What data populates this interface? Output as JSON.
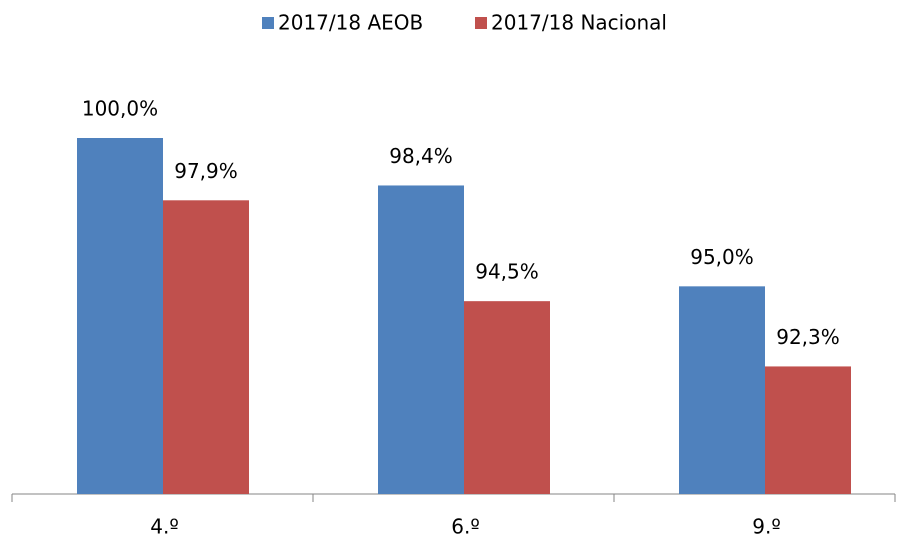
{
  "chart_data": {
    "type": "bar",
    "categories": [
      "4.º",
      "6.º",
      "9.º"
    ],
    "series": [
      {
        "name": "2017/18 AEOB",
        "color": "#4f81bd",
        "values": [
          100.0,
          98.4,
          95.0
        ],
        "value_labels": [
          "100,0%",
          "98,4%",
          "95,0%"
        ]
      },
      {
        "name": "2017/18 Nacional",
        "color": "#c0504d",
        "values": [
          97.9,
          94.5,
          92.3
        ],
        "value_labels": [
          "97,9%",
          "94,5%",
          "92,3%"
        ]
      }
    ],
    "ylim": [
      88,
      100
    ],
    "legend": "top"
  }
}
